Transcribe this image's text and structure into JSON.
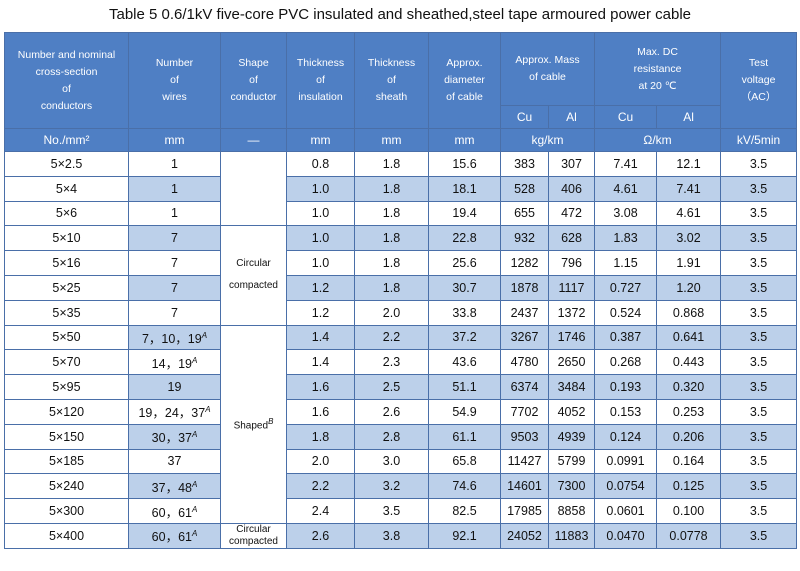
{
  "title": "Table 5    0.6/1kV five-core PVC insulated and sheathed,steel tape armoured power cable",
  "headers": {
    "col1": [
      "Number and nominal",
      "cross-section",
      "of",
      "conductors"
    ],
    "col2": [
      "Number",
      "of",
      "wires"
    ],
    "col3": [
      "Shape",
      "of",
      "conductor"
    ],
    "col4": [
      "Thickness",
      "of",
      "insulation"
    ],
    "col5": [
      "Thickness",
      "of",
      "sheath"
    ],
    "col6": [
      "Approx.",
      "diameter",
      "of cable"
    ],
    "col7": [
      "Approx. Mass",
      "of cable"
    ],
    "col8": [
      "Max. DC",
      "resistance",
      "at 20 ℃"
    ],
    "col9": [
      "Test",
      "voltage",
      "（AC）"
    ],
    "sub_cu": "Cu",
    "sub_al": "Al"
  },
  "units": [
    "No./mm²",
    "mm",
    "—",
    "mm",
    "mm",
    "mm",
    "kg/km",
    "Ω/km",
    "kV/5min"
  ],
  "shapes": {
    "circular": [
      "Circular",
      "compacted"
    ],
    "shaped": "Shaped",
    "shaped_mark": "B",
    "circular_last": [
      "Circular",
      "compacted"
    ]
  },
  "rows": [
    {
      "size": "5×2.5",
      "wires": "1",
      "wires_mark": "",
      "ins": "0.8",
      "sheath": "1.8",
      "dia": "15.6",
      "cu": "383",
      "al": "307",
      "rcu": "7.41",
      "ral": "12.1",
      "v": "3.5"
    },
    {
      "size": "5×4",
      "wires": "1",
      "wires_mark": "",
      "ins": "1.0",
      "sheath": "1.8",
      "dia": "18.1",
      "cu": "528",
      "al": "406",
      "rcu": "4.61",
      "ral": "7.41",
      "v": "3.5"
    },
    {
      "size": "5×6",
      "wires": "1",
      "wires_mark": "",
      "ins": "1.0",
      "sheath": "1.8",
      "dia": "19.4",
      "cu": "655",
      "al": "472",
      "rcu": "3.08",
      "ral": "4.61",
      "v": "3.5"
    },
    {
      "size": "5×10",
      "wires": "7",
      "wires_mark": "",
      "ins": "1.0",
      "sheath": "1.8",
      "dia": "22.8",
      "cu": "932",
      "al": "628",
      "rcu": "1.83",
      "ral": "3.02",
      "v": "3.5"
    },
    {
      "size": "5×16",
      "wires": "7",
      "wires_mark": "",
      "ins": "1.0",
      "sheath": "1.8",
      "dia": "25.6",
      "cu": "1282",
      "al": "796",
      "rcu": "1.15",
      "ral": "1.91",
      "v": "3.5"
    },
    {
      "size": "5×25",
      "wires": "7",
      "wires_mark": "",
      "ins": "1.2",
      "sheath": "1.8",
      "dia": "30.7",
      "cu": "1878",
      "al": "1117",
      "rcu": "0.727",
      "ral": "1.20",
      "v": "3.5"
    },
    {
      "size": "5×35",
      "wires": "7",
      "wires_mark": "",
      "ins": "1.2",
      "sheath": "2.0",
      "dia": "33.8",
      "cu": "2437",
      "al": "1372",
      "rcu": "0.524",
      "ral": "0.868",
      "v": "3.5"
    },
    {
      "size": "5×50",
      "wires": "7，10，19",
      "wires_mark": "A",
      "ins": "1.4",
      "sheath": "2.2",
      "dia": "37.2",
      "cu": "3267",
      "al": "1746",
      "rcu": "0.387",
      "ral": "0.641",
      "v": "3.5"
    },
    {
      "size": "5×70",
      "wires": "14，19",
      "wires_mark": "A",
      "ins": "1.4",
      "sheath": "2.3",
      "dia": "43.6",
      "cu": "4780",
      "al": "2650",
      "rcu": "0.268",
      "ral": "0.443",
      "v": "3.5"
    },
    {
      "size": "5×95",
      "wires": "19",
      "wires_mark": "",
      "ins": "1.6",
      "sheath": "2.5",
      "dia": "51.1",
      "cu": "6374",
      "al": "3484",
      "rcu": "0.193",
      "ral": "0.320",
      "v": "3.5"
    },
    {
      "size": "5×120",
      "wires": "19，24，37",
      "wires_mark": "A",
      "ins": "1.6",
      "sheath": "2.6",
      "dia": "54.9",
      "cu": "7702",
      "al": "4052",
      "rcu": "0.153",
      "ral": "0.253",
      "v": "3.5"
    },
    {
      "size": "5×150",
      "wires": "30，37",
      "wires_mark": "A",
      "ins": "1.8",
      "sheath": "2.8",
      "dia": "61.1",
      "cu": "9503",
      "al": "4939",
      "rcu": "0.124",
      "ral": "0.206",
      "v": "3.5"
    },
    {
      "size": "5×185",
      "wires": "37",
      "wires_mark": "",
      "ins": "2.0",
      "sheath": "3.0",
      "dia": "65.8",
      "cu": "11427",
      "al": "5799",
      "rcu": "0.0991",
      "ral": "0.164",
      "v": "3.5"
    },
    {
      "size": "5×240",
      "wires": "37，48",
      "wires_mark": "A",
      "ins": "2.2",
      "sheath": "3.2",
      "dia": "74.6",
      "cu": "14601",
      "al": "7300",
      "rcu": "0.0754",
      "ral": "0.125",
      "v": "3.5"
    },
    {
      "size": "5×300",
      "wires": "60，61",
      "wires_mark": "A",
      "ins": "2.4",
      "sheath": "3.5",
      "dia": "82.5",
      "cu": "17985",
      "al": "8858",
      "rcu": "0.0601",
      "ral": "0.100",
      "v": "3.5"
    },
    {
      "size": "5×400",
      "wires": "60，61",
      "wires_mark": "A",
      "ins": "2.6",
      "sheath": "3.8",
      "dia": "92.1",
      "cu": "24052",
      "al": "11883",
      "rcu": "0.0470",
      "ral": "0.0778",
      "v": "3.5"
    }
  ]
}
